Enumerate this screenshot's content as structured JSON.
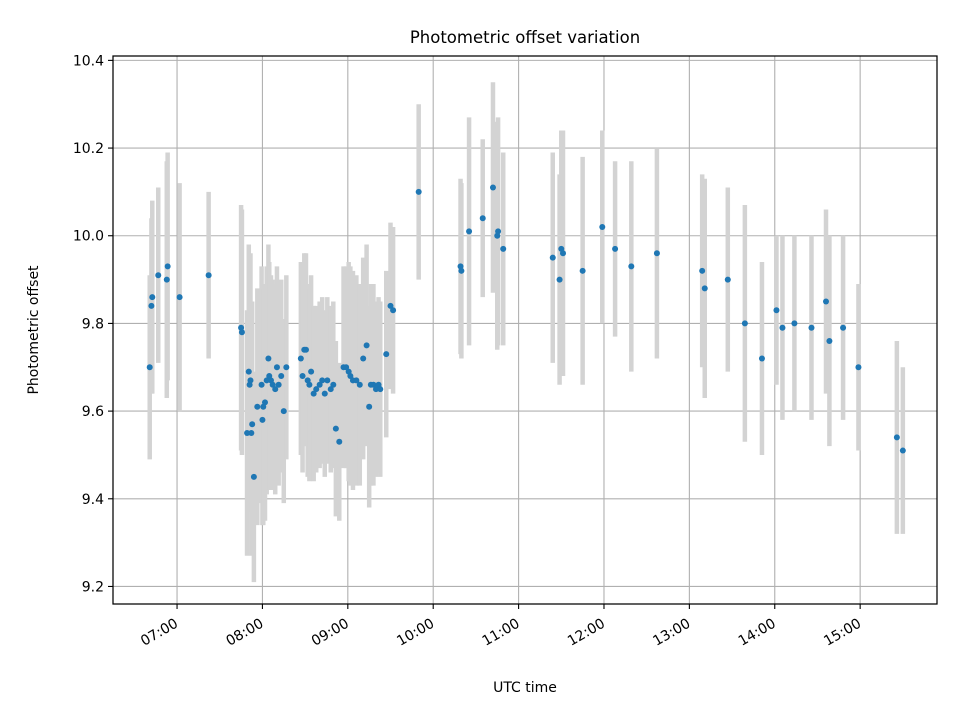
{
  "colors": {
    "point": "#1f77b4",
    "errorbar": "#d3d3d3",
    "grid": "#b0b0b0",
    "axis": "#000000"
  },
  "chart_data": {
    "type": "scatter",
    "title": "Photometric offset variation",
    "xlabel": "UTC time",
    "ylabel": "Photometric offset",
    "grid": true,
    "x_unit": "hours UTC",
    "xlim": [
      6.25,
      15.9
    ],
    "ylim": [
      9.16,
      10.41
    ],
    "x_ticks": [
      7,
      8,
      9,
      10,
      11,
      12,
      13,
      14,
      15
    ],
    "x_tick_labels": [
      "07:00",
      "08:00",
      "09:00",
      "10:00",
      "11:00",
      "12:00",
      "13:00",
      "14:00",
      "15:00"
    ],
    "y_ticks": [
      9.2,
      9.4,
      9.6,
      9.8,
      10.0,
      10.2,
      10.4
    ],
    "y_tick_labels": [
      "9.2",
      "9.4",
      "9.6",
      "9.8",
      "10.0",
      "10.2",
      "10.4"
    ],
    "series": [
      {
        "points": [
          {
            "x": 6.68,
            "y": 9.7,
            "err": 0.21
          },
          {
            "x": 6.7,
            "y": 9.84,
            "err": 0.2
          },
          {
            "x": 6.71,
            "y": 9.86,
            "err": 0.22
          },
          {
            "x": 6.78,
            "y": 9.91,
            "err": 0.2
          },
          {
            "x": 6.88,
            "y": 9.9,
            "err": 0.27
          },
          {
            "x": 6.89,
            "y": 9.93,
            "err": 0.26
          },
          {
            "x": 7.03,
            "y": 9.86,
            "err": 0.26
          },
          {
            "x": 7.37,
            "y": 9.91,
            "err": 0.19
          },
          {
            "x": 7.75,
            "y": 9.79,
            "err": 0.28
          },
          {
            "x": 7.76,
            "y": 9.78,
            "err": 0.28
          },
          {
            "x": 7.82,
            "y": 9.55,
            "err": 0.28
          },
          {
            "x": 7.84,
            "y": 9.69,
            "err": 0.29
          },
          {
            "x": 7.85,
            "y": 9.66,
            "err": 0.29
          },
          {
            "x": 7.86,
            "y": 9.67,
            "err": 0.29
          },
          {
            "x": 7.87,
            "y": 9.55,
            "err": 0.28
          },
          {
            "x": 7.88,
            "y": 9.57,
            "err": 0.28
          },
          {
            "x": 7.9,
            "y": 9.45,
            "err": 0.24
          },
          {
            "x": 7.94,
            "y": 9.61,
            "err": 0.27
          },
          {
            "x": 7.99,
            "y": 9.66,
            "err": 0.27
          },
          {
            "x": 8.0,
            "y": 9.58,
            "err": 0.24
          },
          {
            "x": 8.01,
            "y": 9.61,
            "err": 0.27
          },
          {
            "x": 8.03,
            "y": 9.62,
            "err": 0.27
          },
          {
            "x": 8.05,
            "y": 9.67,
            "err": 0.26
          },
          {
            "x": 8.07,
            "y": 9.72,
            "err": 0.26
          },
          {
            "x": 8.08,
            "y": 9.68,
            "err": 0.26
          },
          {
            "x": 8.1,
            "y": 9.67,
            "err": 0.24
          },
          {
            "x": 8.12,
            "y": 9.66,
            "err": 0.24
          },
          {
            "x": 8.15,
            "y": 9.65,
            "err": 0.24
          },
          {
            "x": 8.17,
            "y": 9.7,
            "err": 0.23
          },
          {
            "x": 8.19,
            "y": 9.66,
            "err": 0.23
          },
          {
            "x": 8.22,
            "y": 9.68,
            "err": 0.22
          },
          {
            "x": 8.25,
            "y": 9.6,
            "err": 0.21
          },
          {
            "x": 8.28,
            "y": 9.7,
            "err": 0.21
          },
          {
            "x": 8.45,
            "y": 9.72,
            "err": 0.22
          },
          {
            "x": 8.47,
            "y": 9.68,
            "err": 0.22
          },
          {
            "x": 8.49,
            "y": 9.74,
            "err": 0.22
          },
          {
            "x": 8.51,
            "y": 9.74,
            "err": 0.22
          },
          {
            "x": 8.53,
            "y": 9.67,
            "err": 0.22
          },
          {
            "x": 8.55,
            "y": 9.66,
            "err": 0.22
          },
          {
            "x": 8.57,
            "y": 9.69,
            "err": 0.22
          },
          {
            "x": 8.6,
            "y": 9.64,
            "err": 0.2
          },
          {
            "x": 8.63,
            "y": 9.65,
            "err": 0.19
          },
          {
            "x": 8.67,
            "y": 9.66,
            "err": 0.19
          },
          {
            "x": 8.7,
            "y": 9.67,
            "err": 0.19
          },
          {
            "x": 8.73,
            "y": 9.64,
            "err": 0.19
          },
          {
            "x": 8.76,
            "y": 9.67,
            "err": 0.19
          },
          {
            "x": 8.8,
            "y": 9.65,
            "err": 0.19
          },
          {
            "x": 8.83,
            "y": 9.66,
            "err": 0.19
          },
          {
            "x": 8.86,
            "y": 9.56,
            "err": 0.2
          },
          {
            "x": 8.9,
            "y": 9.53,
            "err": 0.18
          },
          {
            "x": 8.95,
            "y": 9.7,
            "err": 0.23
          },
          {
            "x": 8.98,
            "y": 9.7,
            "err": 0.23
          },
          {
            "x": 9.01,
            "y": 9.69,
            "err": 0.25
          },
          {
            "x": 9.03,
            "y": 9.68,
            "err": 0.25
          },
          {
            "x": 9.06,
            "y": 9.67,
            "err": 0.25
          },
          {
            "x": 9.1,
            "y": 9.67,
            "err": 0.24
          },
          {
            "x": 9.14,
            "y": 9.66,
            "err": 0.23
          },
          {
            "x": 9.18,
            "y": 9.72,
            "err": 0.23
          },
          {
            "x": 9.22,
            "y": 9.75,
            "err": 0.23
          },
          {
            "x": 9.25,
            "y": 9.61,
            "err": 0.23
          },
          {
            "x": 9.27,
            "y": 9.66,
            "err": 0.23
          },
          {
            "x": 9.3,
            "y": 9.66,
            "err": 0.23
          },
          {
            "x": 9.33,
            "y": 9.65,
            "err": 0.2
          },
          {
            "x": 9.36,
            "y": 9.66,
            "err": 0.2
          },
          {
            "x": 9.38,
            "y": 9.65,
            "err": 0.2
          },
          {
            "x": 9.45,
            "y": 9.73,
            "err": 0.19
          },
          {
            "x": 9.5,
            "y": 9.84,
            "err": 0.19
          },
          {
            "x": 9.53,
            "y": 9.83,
            "err": 0.19
          },
          {
            "x": 9.83,
            "y": 10.1,
            "err": 0.2
          },
          {
            "x": 10.32,
            "y": 9.93,
            "err": 0.2
          },
          {
            "x": 10.33,
            "y": 9.92,
            "err": 0.2
          },
          {
            "x": 10.42,
            "y": 10.01,
            "err": 0.26
          },
          {
            "x": 10.58,
            "y": 10.04,
            "err": 0.18
          },
          {
            "x": 10.7,
            "y": 10.11,
            "err": 0.24
          },
          {
            "x": 10.75,
            "y": 10.0,
            "err": 0.26
          },
          {
            "x": 10.76,
            "y": 10.01,
            "err": 0.26
          },
          {
            "x": 10.82,
            "y": 9.97,
            "err": 0.22
          },
          {
            "x": 11.4,
            "y": 9.95,
            "err": 0.24
          },
          {
            "x": 11.48,
            "y": 9.9,
            "err": 0.24
          },
          {
            "x": 11.5,
            "y": 9.97,
            "err": 0.27
          },
          {
            "x": 11.52,
            "y": 9.96,
            "err": 0.28
          },
          {
            "x": 11.75,
            "y": 9.92,
            "err": 0.26
          },
          {
            "x": 11.98,
            "y": 10.02,
            "err": 0.22
          },
          {
            "x": 12.13,
            "y": 9.97,
            "err": 0.2
          },
          {
            "x": 12.32,
            "y": 9.93,
            "err": 0.24
          },
          {
            "x": 12.62,
            "y": 9.96,
            "err": 0.24
          },
          {
            "x": 13.15,
            "y": 9.92,
            "err": 0.22
          },
          {
            "x": 13.18,
            "y": 9.88,
            "err": 0.25
          },
          {
            "x": 13.45,
            "y": 9.9,
            "err": 0.21
          },
          {
            "x": 13.65,
            "y": 9.8,
            "err": 0.27
          },
          {
            "x": 13.85,
            "y": 9.72,
            "err": 0.22
          },
          {
            "x": 14.02,
            "y": 9.83,
            "err": 0.17
          },
          {
            "x": 14.09,
            "y": 9.79,
            "err": 0.21
          },
          {
            "x": 14.23,
            "y": 9.8,
            "err": 0.2
          },
          {
            "x": 14.43,
            "y": 9.79,
            "err": 0.21
          },
          {
            "x": 14.6,
            "y": 9.85,
            "err": 0.21
          },
          {
            "x": 14.64,
            "y": 9.76,
            "err": 0.24
          },
          {
            "x": 14.8,
            "y": 9.79,
            "err": 0.21
          },
          {
            "x": 14.98,
            "y": 9.7,
            "err": 0.19
          },
          {
            "x": 15.43,
            "y": 9.54,
            "err": 0.22
          },
          {
            "x": 15.5,
            "y": 9.51,
            "err": 0.19
          }
        ]
      }
    ]
  }
}
